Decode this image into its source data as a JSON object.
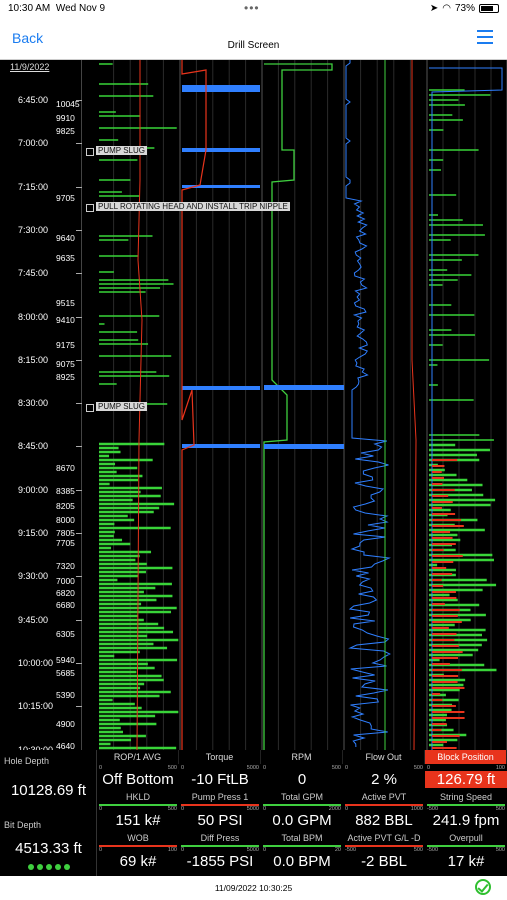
{
  "status_bar": {
    "time": "10:30 AM",
    "date": "Wed Nov 9",
    "battery": "73%"
  },
  "nav": {
    "back_label": "Back",
    "title": "Drill Screen"
  },
  "time_axis": {
    "date": "11/9/2022",
    "times": [
      "6:45:00",
      "7:00:00",
      "7:15:00",
      "7:30:00",
      "7:45:00",
      "8:00:00",
      "8:15:00",
      "8:30:00",
      "8:45:00",
      "9:00:00",
      "9:15:00",
      "9:30:00",
      "9:45:00",
      "10:00:00",
      "10:15:00",
      "10:30:00"
    ],
    "depths": [
      "10045",
      "9910",
      "9825",
      "9705",
      "9640",
      "9635",
      "9515",
      "9410",
      "9175",
      "9075",
      "8925",
      "8670",
      "8385",
      "8205",
      "8000",
      "7805",
      "7705",
      "7320",
      "7000",
      "6820",
      "6680",
      "6305",
      "5940",
      "5685",
      "5390",
      "4900",
      "4640"
    ]
  },
  "annotations": [
    {
      "text": "PUMP SLUG"
    },
    {
      "text": "PULL ROTATING HEAD AND INSTALL TRIP NIPPLE"
    },
    {
      "text": "PUMP SLUG"
    }
  ],
  "channels": [
    {
      "label": "ROP/1 AVG",
      "color": "#3fcf3f"
    },
    {
      "label": "Torque",
      "color": "#2f7fff"
    },
    {
      "label": "RPM",
      "color": "#3fcf3f"
    },
    {
      "label": "Flow Out",
      "color": "#2f7fff"
    },
    {
      "label": "Block Position",
      "color": "#3fcf3f"
    }
  ],
  "depth_panel": {
    "hole_depth_label": "Hole Depth",
    "hole_depth_value": "10128.69 ft",
    "bit_depth_label": "Bit Depth",
    "bit_depth_value": "4513.33 ft"
  },
  "readouts_row1": [
    {
      "scale_min": "0",
      "scale_max": "500",
      "value": "Off Bottom",
      "label": "HKLD",
      "color": "#3fcf3f"
    },
    {
      "scale_min": "0",
      "scale_max": "5000",
      "value": "-10 FtLB",
      "label": "Pump Press 1",
      "color": "#e8341c"
    },
    {
      "scale_min": "0",
      "scale_max": "500",
      "value": "0",
      "label": "Total GPM",
      "color": "#3fcf3f"
    },
    {
      "scale_min": "0",
      "scale_max": "500",
      "value": "2 %",
      "label": "Active PVT",
      "color": "#e8341c"
    },
    {
      "scale_min": "0",
      "scale_max": "100",
      "value": "126.79 ft",
      "label": "String Speed",
      "color": "#3fcf3f",
      "alarm": true
    }
  ],
  "readouts_row2": [
    {
      "scale_min": "0",
      "scale_max": "500",
      "value": "151 k#",
      "label": "WOB",
      "color": "#e8341c"
    },
    {
      "scale_min": "0",
      "scale_max": "5000",
      "value": "50 PSI",
      "label": "Diff Press",
      "color": "#3fcf3f"
    },
    {
      "scale_min": "0",
      "scale_max": "2000",
      "value": "0.0 GPM",
      "label": "Total BPM",
      "color": "#3fcf3f"
    },
    {
      "scale_min": "0",
      "scale_max": "1000",
      "value": "882 BBL",
      "label": "Active PVT G/L -D",
      "color": "#e8341c"
    },
    {
      "scale_min": "-500",
      "scale_max": "500",
      "value": "241.9 fpm",
      "label": "Overpull",
      "color": "#3fcf3f"
    }
  ],
  "readouts_row3": [
    {
      "scale_min": "0",
      "scale_max": "100",
      "value": "69 k#"
    },
    {
      "scale_min": "0",
      "scale_max": "5000",
      "value": "-1855 PSI"
    },
    {
      "scale_min": "0",
      "scale_max": "20",
      "value": "0.0 BPM"
    },
    {
      "scale_min": "-500",
      "scale_max": "500",
      "value": "-2 BBL"
    },
    {
      "scale_min": "-500",
      "scale_max": "500",
      "value": "17 k#"
    }
  ],
  "footer": {
    "timestamp": "11/09/2022 10:30:25"
  }
}
